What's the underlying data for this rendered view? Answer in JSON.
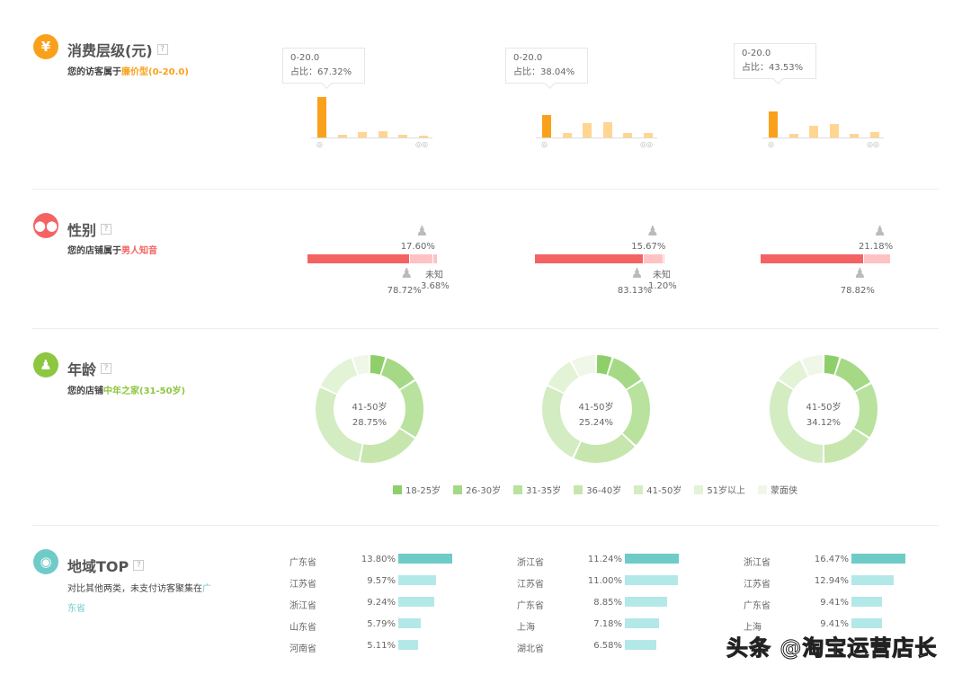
{
  "colors": {
    "orange": "#f9a11b",
    "orange_light": "#ffd591",
    "red": "#f56262",
    "pink": "#ffc2c2",
    "green": "#8dc63f",
    "teal": "#6ecbc8",
    "teal_light": "#b3e8e8",
    "age": [
      "#8fcf6a",
      "#a5d985",
      "#b8e29d",
      "#c6e6ad",
      "#d3ecc2",
      "#e2f3d6",
      "#f0f7e8"
    ]
  },
  "consumption": {
    "icon": "yen-icon",
    "title": "消费层级(元)",
    "help": "?",
    "subtitle_prefix": "您的访客属于",
    "subtitle_highlight": "廉价型(0-20.0)",
    "charts": [
      {
        "tooltip_range": "0-20.0",
        "tooltip_share": "占比：67.32%",
        "values": [
          67.32,
          4,
          9,
          11,
          5,
          3
        ]
      },
      {
        "tooltip_range": "0-20.0",
        "tooltip_share": "占比：38.04%",
        "values": [
          38.04,
          7,
          24,
          26,
          8,
          7
        ]
      },
      {
        "tooltip_range": "0-20.0",
        "tooltip_share": "占比：43.53%",
        "values": [
          43.53,
          6,
          20,
          23,
          6,
          9
        ]
      }
    ]
  },
  "gender": {
    "icon": "users-icon",
    "title": "性别",
    "help": "?",
    "subtitle_prefix": "您的店铺属于",
    "subtitle_highlight": "男人知音",
    "unknown_label": "未知",
    "charts": [
      {
        "male": 78.72,
        "female": 17.6,
        "unknown": 3.68,
        "male_text": "78.72%",
        "female_text": "17.60%",
        "unknown_text": "3.68%"
      },
      {
        "male": 83.13,
        "female": 15.67,
        "unknown": 1.2,
        "male_text": "83.13%",
        "female_text": "15.67%",
        "unknown_text": "1.20%"
      },
      {
        "male": 78.82,
        "female": 21.18,
        "unknown": 0,
        "male_text": "78.82%",
        "female_text": "21.18%",
        "unknown_text": ""
      }
    ]
  },
  "age": {
    "icon": "family-icon",
    "title": "年龄",
    "help": "?",
    "subtitle_prefix": "您的店铺",
    "subtitle_highlight": "中年之家(31-50岁)",
    "legend": [
      "18-25岁",
      "26-30岁",
      "31-35岁",
      "36-40岁",
      "41-50岁",
      "51岁以上",
      "蒙面侠"
    ],
    "charts": [
      {
        "center_label": "41-50岁",
        "center_value": "28.75%",
        "values": [
          5,
          11,
          18,
          19,
          28.75,
          13,
          5.25
        ]
      },
      {
        "center_label": "41-50岁",
        "center_value": "25.24%",
        "values": [
          5,
          11,
          21,
          20,
          25.24,
          10,
          7.76
        ]
      },
      {
        "center_label": "41-50岁",
        "center_value": "34.12%",
        "values": [
          5,
          12,
          17,
          16,
          34.12,
          9,
          6.88
        ]
      }
    ]
  },
  "region": {
    "icon": "location-pin-icon",
    "title": "地域TOP",
    "help": "?",
    "subtitle_line1": "对比其他两类，未支付访客聚集在",
    "subtitle_highlight_a": "广",
    "subtitle_highlight_b": "东省",
    "columns": [
      [
        {
          "name": "广东省",
          "pct": 13.8,
          "text": "13.80%"
        },
        {
          "name": "江苏省",
          "pct": 9.57,
          "text": "9.57%"
        },
        {
          "name": "浙江省",
          "pct": 9.24,
          "text": "9.24%"
        },
        {
          "name": "山东省",
          "pct": 5.79,
          "text": "5.79%"
        },
        {
          "name": "河南省",
          "pct": 5.11,
          "text": "5.11%"
        }
      ],
      [
        {
          "name": "浙江省",
          "pct": 11.24,
          "text": "11.24%"
        },
        {
          "name": "江苏省",
          "pct": 11.0,
          "text": "11.00%"
        },
        {
          "name": "广东省",
          "pct": 8.85,
          "text": "8.85%"
        },
        {
          "name": "上海",
          "pct": 7.18,
          "text": "7.18%"
        },
        {
          "name": "湖北省",
          "pct": 6.58,
          "text": "6.58%"
        }
      ],
      [
        {
          "name": "浙江省",
          "pct": 16.47,
          "text": "16.47%"
        },
        {
          "name": "江苏省",
          "pct": 12.94,
          "text": "12.94%"
        },
        {
          "name": "广东省",
          "pct": 9.41,
          "text": "9.41%"
        },
        {
          "name": "上海",
          "pct": 9.41,
          "text": "9.41%"
        }
      ]
    ]
  },
  "watermark": "头条 @淘宝运营店长"
}
